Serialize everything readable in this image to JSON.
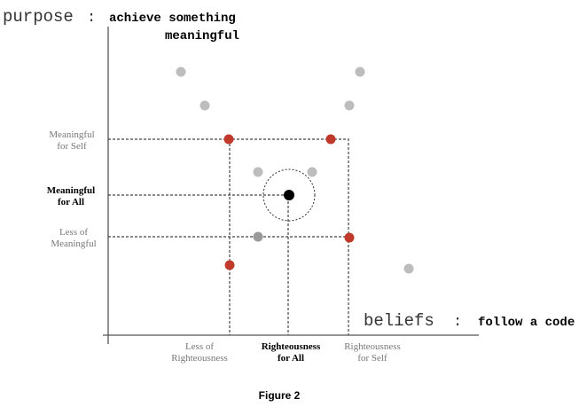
{
  "y_axis": {
    "name": "purpose",
    "separator": ":",
    "description": [
      "achieve something",
      "meaningful"
    ]
  },
  "x_axis": {
    "name": "beliefs",
    "separator": ":",
    "description": "follow a code"
  },
  "y_labels": [
    {
      "lines": [
        "Meaningful",
        "for Self"
      ]
    },
    {
      "lines": [
        "Meaningful",
        "for All"
      ]
    },
    {
      "lines": [
        "Less of",
        "Meaningful"
      ]
    }
  ],
  "x_labels": [
    {
      "lines": [
        "Less of",
        "Righteousness"
      ]
    },
    {
      "lines": [
        "Righteousness",
        "for All"
      ]
    },
    {
      "lines": [
        "Righteousness",
        "for Self"
      ]
    }
  ],
  "caption": "Figure 2"
}
